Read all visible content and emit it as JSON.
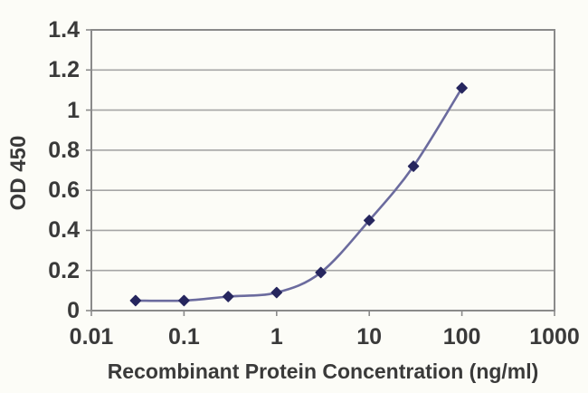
{
  "chart_data": {
    "type": "line",
    "x": [
      0.03,
      0.1,
      0.3,
      1,
      3,
      10,
      30,
      100
    ],
    "series": [
      {
        "name": "OD 450",
        "values": [
          0.05,
          0.05,
          0.07,
          0.09,
          0.19,
          0.45,
          0.72,
          1.11
        ]
      }
    ],
    "title": "",
    "xlabel": "Recombinant Protein Concentration (ng/ml)",
    "ylabel": "OD 450",
    "xscale": "log",
    "xlim": [
      0.01,
      1000
    ],
    "ylim": [
      0,
      1.4
    ],
    "xticks": [
      "0.01",
      "0.1",
      "1",
      "10",
      "100",
      "1000"
    ],
    "yticks": [
      "0",
      "0.2",
      "0.4",
      "0.6",
      "0.8",
      "1",
      "1.2",
      "1.4"
    ],
    "grid": "horizontal",
    "legend": "none",
    "marker": "diamond",
    "smooth": true
  },
  "colors": {
    "background": "#fcfcf7",
    "plot_border": "#8a8a8a",
    "gridline": "#a6a6a6",
    "tick_text": "#3a3a3a",
    "line": "#6b6b9e",
    "marker": "#26265e"
  }
}
